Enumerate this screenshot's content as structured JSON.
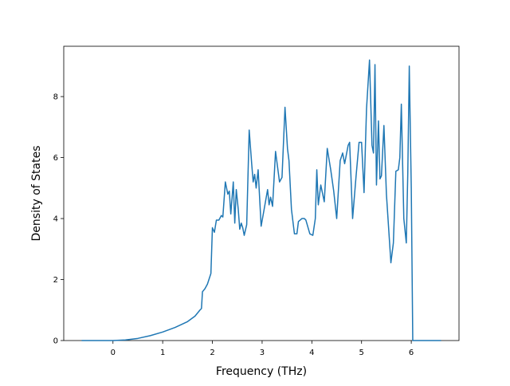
{
  "chart_data": {
    "type": "line",
    "x_label": "Frequency (THz)",
    "y_label": "Density of States",
    "xlim": [
      -0.99,
      6.96
    ],
    "ylim": [
      0,
      9.65
    ],
    "xticks": [
      0,
      1,
      2,
      3,
      4,
      5,
      6
    ],
    "yticks": [
      0,
      2,
      4,
      6,
      8
    ],
    "grid": false,
    "series": [
      {
        "color": "#1f77b4",
        "x": [
          -0.63,
          0,
          0.25,
          0.5,
          0.75,
          1.0,
          1.25,
          1.5,
          1.65,
          1.75,
          1.78,
          1.8,
          1.85,
          1.9,
          1.97,
          2.0,
          2.04,
          2.08,
          2.13,
          2.18,
          2.21,
          2.26,
          2.31,
          2.34,
          2.37,
          2.42,
          2.45,
          2.48,
          2.52,
          2.55,
          2.58,
          2.61,
          2.64,
          2.69,
          2.74,
          2.79,
          2.82,
          2.85,
          2.88,
          2.92,
          2.98,
          3.04,
          3.11,
          3.14,
          3.17,
          3.21,
          3.27,
          3.35,
          3.4,
          3.46,
          3.51,
          3.54,
          3.59,
          3.65,
          3.7,
          3.73,
          3.8,
          3.85,
          3.88,
          3.96,
          4.02,
          4.07,
          4.1,
          4.13,
          4.18,
          4.25,
          4.31,
          4.38,
          4.44,
          4.5,
          4.57,
          4.62,
          4.66,
          4.73,
          4.76,
          4.82,
          4.89,
          4.95,
          5.0,
          5.05,
          5.1,
          5.16,
          5.21,
          5.24,
          5.27,
          5.3,
          5.34,
          5.37,
          5.4,
          5.45,
          5.5,
          5.54,
          5.59,
          5.64,
          5.69,
          5.74,
          5.77,
          5.8,
          5.85,
          5.9,
          5.93,
          5.96,
          6.0,
          6.03,
          6.6
        ],
        "values": [
          0,
          0,
          0.02,
          0.07,
          0.16,
          0.28,
          0.43,
          0.62,
          0.8,
          1.0,
          1.05,
          1.6,
          1.7,
          1.85,
          2.2,
          3.7,
          3.55,
          3.95,
          3.95,
          4.1,
          4.05,
          5.2,
          4.8,
          4.9,
          4.15,
          5.2,
          3.85,
          4.95,
          4.3,
          3.65,
          3.85,
          3.7,
          3.45,
          3.8,
          6.9,
          5.8,
          5.2,
          5.45,
          5.0,
          5.6,
          3.75,
          4.3,
          4.95,
          4.45,
          4.7,
          4.4,
          6.2,
          5.2,
          5.35,
          7.65,
          6.3,
          5.9,
          4.3,
          3.5,
          3.5,
          3.9,
          4.0,
          4.0,
          3.95,
          3.5,
          3.45,
          4.0,
          5.6,
          4.45,
          5.1,
          4.55,
          6.3,
          5.6,
          4.9,
          4.0,
          5.9,
          6.15,
          5.8,
          6.4,
          6.5,
          4.0,
          5.4,
          6.5,
          6.5,
          4.85,
          7.6,
          9.2,
          6.4,
          6.15,
          9.05,
          5.1,
          7.2,
          5.3,
          5.4,
          7.05,
          4.8,
          3.8,
          2.55,
          3.2,
          5.55,
          5.6,
          6.0,
          7.75,
          4.0,
          3.2,
          5.5,
          9.0,
          5.0,
          0,
          0
        ]
      }
    ]
  }
}
